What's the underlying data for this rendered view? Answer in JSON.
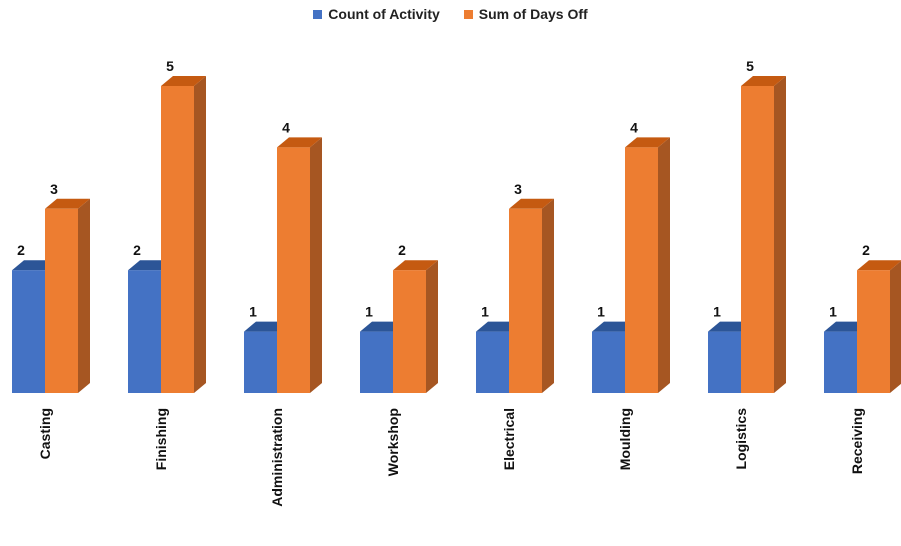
{
  "colors": {
    "count_front": "#4472c4",
    "count_side": "#2f5597",
    "count_top": "#2c5597",
    "days_front": "#ed7d31",
    "days_side": "#a65622",
    "days_top": "#c55a11"
  },
  "chart_data": {
    "type": "bar",
    "categories": [
      "Casting",
      "Finishing",
      "Administration",
      "Workshop",
      "Electrical",
      "Moulding",
      "Logistics",
      "Receiving"
    ],
    "series": [
      {
        "name": "Count of Activity",
        "values": [
          2,
          2,
          1,
          1,
          1,
          1,
          1,
          1
        ]
      },
      {
        "name": "Sum of Days Off",
        "values": [
          3,
          5,
          4,
          2,
          3,
          4,
          5,
          2
        ]
      }
    ],
    "ylim": [
      0,
      5
    ],
    "grid": false,
    "legend_position": "top-center",
    "data_labels": true,
    "three_d": true
  }
}
